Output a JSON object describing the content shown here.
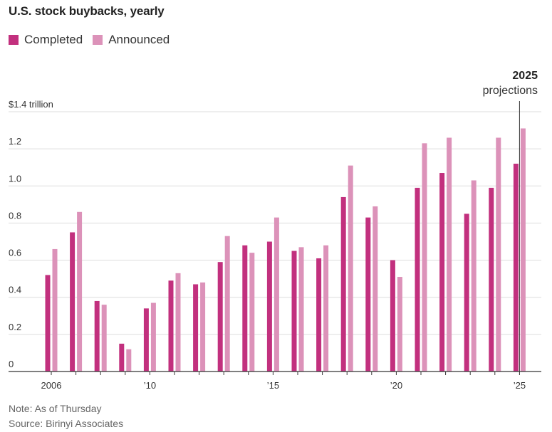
{
  "title": "U.S. stock buybacks, yearly",
  "legend": {
    "completed": "Completed",
    "announced": "Announced"
  },
  "colors": {
    "completed": "#c2307e",
    "announced": "#dc92b9",
    "grid": "#dddddd",
    "axis": "#333333"
  },
  "annotation": {
    "year": "2025",
    "label": "projections"
  },
  "footer": {
    "note": "Note: As of Thursday",
    "source": "Source: Birinyi Associates"
  },
  "chart_data": {
    "type": "bar",
    "title": "U.S. stock buybacks, yearly",
    "ylabel": "$1.4 trillion",
    "ylim": [
      0,
      1.4
    ],
    "yticks": [
      0,
      0.2,
      0.4,
      0.6,
      0.8,
      1.0,
      1.2,
      1.4
    ],
    "ytick_labels": [
      "0",
      "0.2",
      "0.4",
      "0.6",
      "0.8",
      "1.0",
      "1.2",
      "$1.4 trillion"
    ],
    "categories": [
      2006,
      2007,
      2008,
      2009,
      2010,
      2011,
      2012,
      2013,
      2014,
      2015,
      2016,
      2017,
      2018,
      2019,
      2020,
      2021,
      2022,
      2023,
      2024,
      2025
    ],
    "xtick_labels": [
      {
        "year": 2006,
        "label": "2006"
      },
      {
        "year": 2010,
        "label": "’10"
      },
      {
        "year": 2015,
        "label": "’15"
      },
      {
        "year": 2020,
        "label": "’20"
      },
      {
        "year": 2025,
        "label": "’25"
      }
    ],
    "series": [
      {
        "name": "Completed",
        "values": [
          0.52,
          0.75,
          0.38,
          0.15,
          0.34,
          0.49,
          0.47,
          0.59,
          0.68,
          0.7,
          0.65,
          0.61,
          0.94,
          0.83,
          0.6,
          0.99,
          1.07,
          0.85,
          0.99,
          1.12
        ]
      },
      {
        "name": "Announced",
        "values": [
          0.66,
          0.86,
          0.36,
          0.12,
          0.37,
          0.53,
          0.48,
          0.73,
          0.64,
          0.83,
          0.67,
          0.68,
          1.11,
          0.89,
          0.51,
          1.23,
          1.26,
          1.03,
          1.26,
          1.31
        ]
      }
    ],
    "grid": true,
    "legend_position": "top-left"
  }
}
